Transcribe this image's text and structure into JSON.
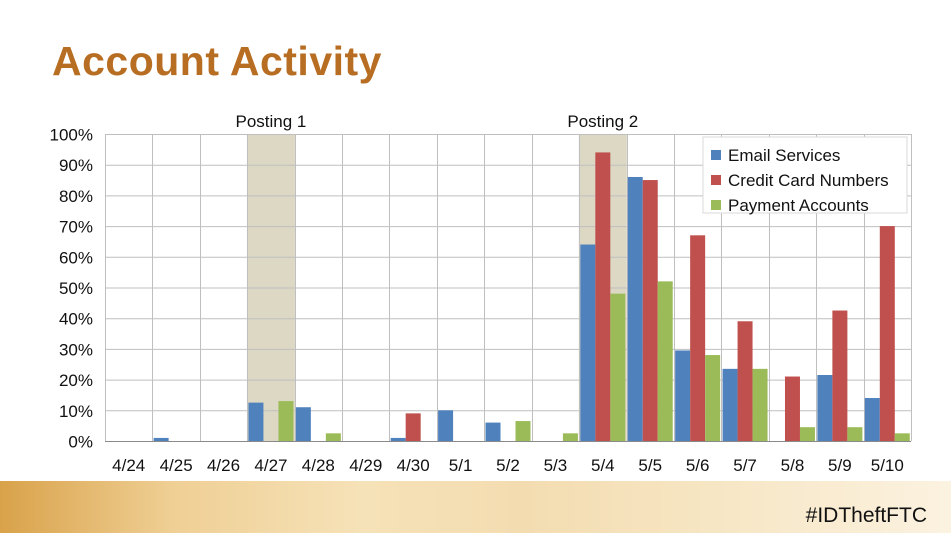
{
  "title": "Account Activity",
  "hashtag": "#IDTheftFTC",
  "chart_data": {
    "type": "bar",
    "categories": [
      "4/24",
      "4/25",
      "4/26",
      "4/27",
      "4/28",
      "4/29",
      "4/30",
      "5/1",
      "5/2",
      "5/3",
      "5/4",
      "5/5",
      "5/6",
      "5/7",
      "5/8",
      "5/9",
      "5/10"
    ],
    "ylim": [
      0,
      100
    ],
    "yticks": [
      "0%",
      "10%",
      "20%",
      "30%",
      "40%",
      "50%",
      "60%",
      "70%",
      "80%",
      "90%",
      "100%"
    ],
    "ytick_values": [
      0,
      10,
      20,
      30,
      40,
      50,
      60,
      70,
      80,
      90,
      100
    ],
    "grid": true,
    "legend_position": "top-right",
    "series": [
      {
        "name": "Email Services",
        "color": "#4f81bd",
        "values": [
          0,
          1,
          0,
          12.5,
          11,
          0,
          1,
          10,
          6,
          0,
          64,
          86,
          29.5,
          23.5,
          0,
          21.5,
          14
        ]
      },
      {
        "name": "Credit Card Numbers",
        "color": "#c0504d",
        "values": [
          0,
          0,
          0,
          0,
          0,
          0,
          9,
          0,
          0,
          0,
          94,
          85,
          67,
          39,
          21,
          42.5,
          70
        ]
      },
      {
        "name": "Payment Accounts",
        "color": "#9bbb59",
        "values": [
          0,
          0,
          0,
          13,
          2.5,
          0,
          0,
          0,
          6.5,
          2.5,
          48,
          52,
          28,
          23.5,
          4.5,
          4.5,
          2.5
        ]
      }
    ],
    "annotations": [
      {
        "label": "Posting 1",
        "category": "4/27",
        "color": "#ddd8c4"
      },
      {
        "label": "Posting 2",
        "category": "5/4",
        "color": "#ddd8c4"
      }
    ]
  }
}
